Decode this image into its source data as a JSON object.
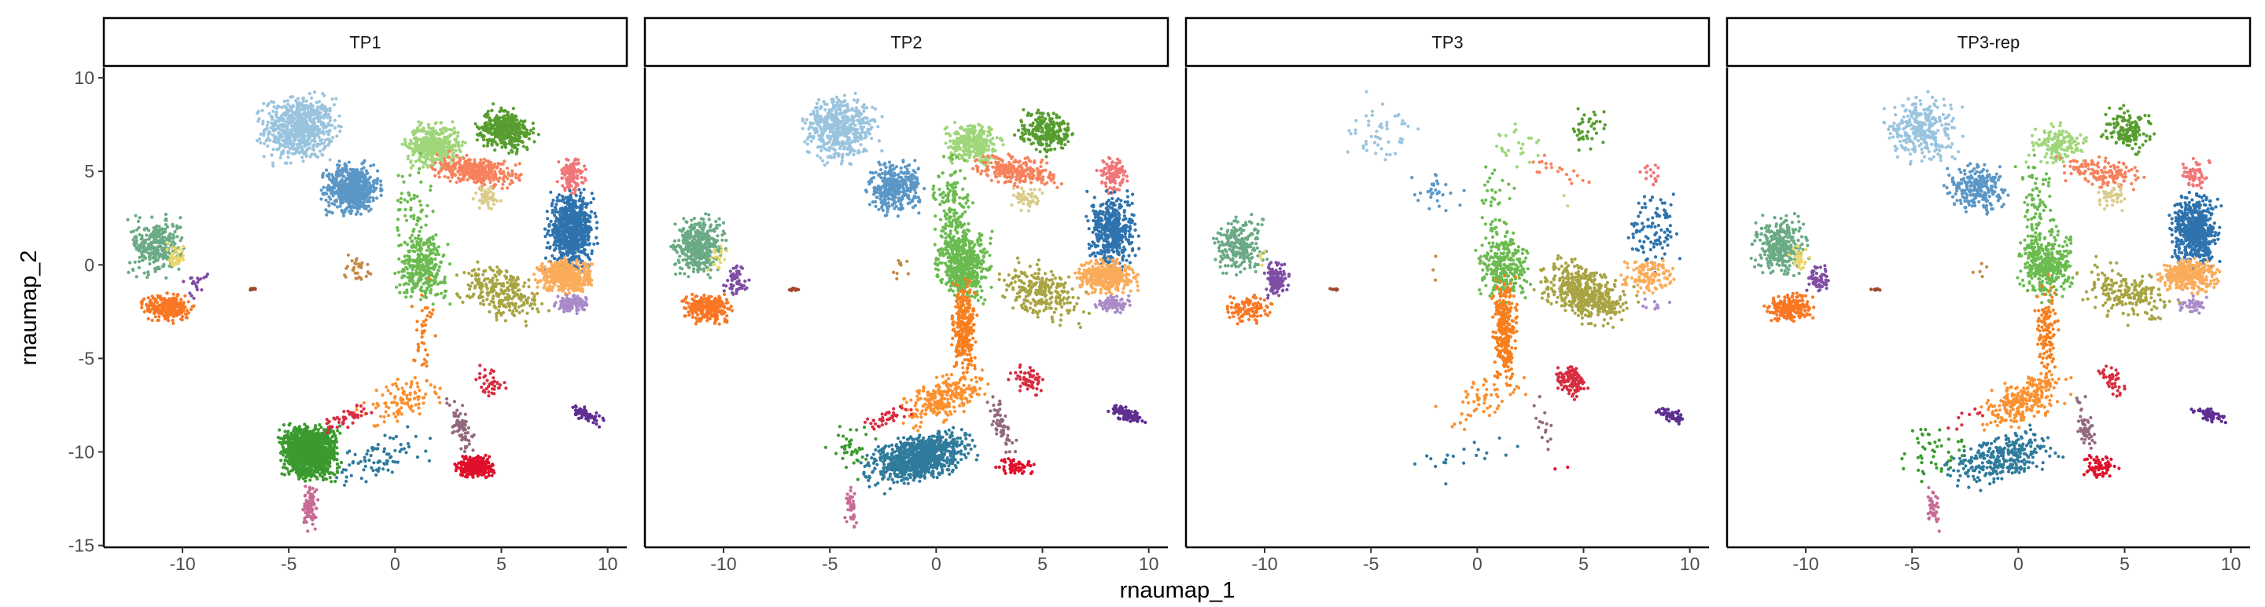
{
  "chart_data": {
    "type": "scatter",
    "title": "",
    "xlabel": "rnaumap_1",
    "ylabel": "rnaumap_2",
    "xlim": [
      -13.7,
      10.9
    ],
    "ylim": [
      -15.1,
      10.55
    ],
    "xticks": [
      -10,
      -5,
      0,
      5,
      10
    ],
    "xtick_labels": [
      "-10",
      "-5",
      "0",
      "5",
      "10"
    ],
    "yticks": [
      10,
      5,
      0,
      -5,
      -10,
      -15
    ],
    "ytick_labels": [
      "10",
      "5",
      "0",
      "-5",
      "-10",
      "-15"
    ],
    "grid": false,
    "legend": "none",
    "panels": [
      "TP1",
      "TP2",
      "TP3",
      "TP3-rep"
    ],
    "clusters_note_units": "center (cx,cy) and spread (sx,sy) in UMAP data units; rot in degrees; n = approximate cell count per panel [TP1,TP2,TP3,TP3-rep]",
    "clusters": [
      {
        "color": "#9ac4de",
        "cx": -4.5,
        "cy": 7.3,
        "sx": 0.8,
        "sy": 0.8,
        "rot": 0,
        "n": [
          700,
          500,
          50,
          300
        ]
      },
      {
        "color": "#5b97c6",
        "cx": -2.0,
        "cy": 4.1,
        "sx": 0.6,
        "sy": 0.6,
        "rot": 0,
        "n": [
          600,
          350,
          30,
          250
        ]
      },
      {
        "color": "#a0d67a",
        "cx": 1.8,
        "cy": 6.4,
        "sx": 0.6,
        "sy": 0.5,
        "rot": 0,
        "n": [
          450,
          300,
          25,
          150
        ]
      },
      {
        "color": "#579d2f",
        "cx": 5.2,
        "cy": 7.2,
        "sx": 0.6,
        "sy": 0.5,
        "rot": -30,
        "n": [
          400,
          250,
          40,
          150
        ]
      },
      {
        "color": "#f6825d",
        "cx": 3.8,
        "cy": 5.0,
        "sx": 0.9,
        "sy": 0.35,
        "rot": -10,
        "n": [
          350,
          250,
          20,
          150
        ]
      },
      {
        "color": "#f07678",
        "cx": 8.3,
        "cy": 4.8,
        "sx": 0.3,
        "sy": 0.4,
        "rot": 0,
        "n": [
          120,
          120,
          15,
          60
        ]
      },
      {
        "color": "#d9cc8a",
        "cx": 4.3,
        "cy": 3.6,
        "sx": 0.3,
        "sy": 0.3,
        "rot": 0,
        "n": [
          60,
          50,
          2,
          40
        ]
      },
      {
        "color": "#2e73ae",
        "cx": 8.3,
        "cy": 1.8,
        "sx": 0.5,
        "sy": 0.9,
        "rot": 0,
        "n": [
          700,
          450,
          100,
          600
        ]
      },
      {
        "color": "#fbac5a",
        "cx": 8.0,
        "cy": -0.6,
        "sx": 0.6,
        "sy": 0.4,
        "rot": 0,
        "n": [
          450,
          400,
          120,
          350
        ]
      },
      {
        "color": "#a98bc8",
        "cx": 8.3,
        "cy": -2.1,
        "sx": 0.35,
        "sy": 0.2,
        "rot": 0,
        "n": [
          120,
          80,
          10,
          40
        ]
      },
      {
        "color": "#a8a443",
        "cx": 5.0,
        "cy": -1.5,
        "sx": 1.0,
        "sy": 0.6,
        "rot": -30,
        "n": [
          250,
          250,
          500,
          200
        ]
      },
      {
        "color": "#6bbb50",
        "cx": 1.3,
        "cy": -0.1,
        "sx": 0.55,
        "sy": 0.8,
        "rot": 0,
        "n": [
          300,
          500,
          250,
          350
        ]
      },
      {
        "color": "#6bbb50",
        "cx": 0.8,
        "cy": 2.5,
        "sx": 0.4,
        "sy": 1.5,
        "rot": 0,
        "n": [
          80,
          200,
          60,
          100
        ]
      },
      {
        "color": "#6aaa84",
        "cx": -11.2,
        "cy": 1.0,
        "sx": 0.55,
        "sy": 0.7,
        "rot": 0,
        "n": [
          300,
          400,
          250,
          300
        ]
      },
      {
        "color": "#ebd76c",
        "cx": -10.3,
        "cy": 0.4,
        "sx": 0.2,
        "sy": 0.35,
        "rot": 0,
        "n": [
          40,
          20,
          5,
          30
        ]
      },
      {
        "color": "#f97724",
        "cx": -10.7,
        "cy": -2.3,
        "sx": 0.5,
        "sy": 0.35,
        "rot": 0,
        "n": [
          250,
          250,
          100,
          200
        ]
      },
      {
        "color": "#7f4ea4",
        "cx": -9.4,
        "cy": -0.8,
        "sx": 0.25,
        "sy": 0.4,
        "rot": 0,
        "n": [
          20,
          60,
          120,
          60
        ]
      },
      {
        "color": "#a0472c",
        "cx": -6.7,
        "cy": -1.3,
        "sx": 0.12,
        "sy": 0.03,
        "rot": 0,
        "n": [
          10,
          10,
          10,
          10
        ]
      },
      {
        "color": "#c48a47",
        "cx": -1.8,
        "cy": -0.2,
        "sx": 0.3,
        "sy": 0.3,
        "rot": 0,
        "n": [
          30,
          10,
          3,
          5
        ]
      },
      {
        "color": "#f77f1e",
        "cx": 1.3,
        "cy": -3.5,
        "sx": 0.25,
        "sy": 1.2,
        "rot": 0,
        "n": [
          40,
          300,
          300,
          120
        ]
      },
      {
        "color": "#fc902f",
        "cx": 0.3,
        "cy": -7.2,
        "sx": 1.0,
        "sy": 0.5,
        "rot": 30,
        "n": [
          100,
          250,
          60,
          250
        ]
      },
      {
        "color": "#3b9a2f",
        "cx": -4.0,
        "cy": -10.0,
        "sx": 0.6,
        "sy": 0.65,
        "rot": 0,
        "n": [
          1300,
          40,
          0,
          50
        ]
      },
      {
        "color": "#2f7b9c",
        "cx": -0.8,
        "cy": -10.3,
        "sx": 1.1,
        "sy": 0.55,
        "rot": 20,
        "n": [
          80,
          900,
          20,
          300
        ]
      },
      {
        "color": "#c86b96",
        "cx": -4.0,
        "cy": -13.0,
        "sx": 0.15,
        "sy": 0.5,
        "rot": 0,
        "n": [
          100,
          40,
          0,
          40
        ]
      },
      {
        "color": "#d82d40",
        "cx": -2.3,
        "cy": -8.2,
        "sx": 0.5,
        "sy": 0.2,
        "rot": 30,
        "n": [
          50,
          40,
          0,
          10
        ]
      },
      {
        "color": "#d82d40",
        "cx": 4.4,
        "cy": -6.2,
        "sx": 0.3,
        "sy": 0.4,
        "rot": 40,
        "n": [
          40,
          60,
          120,
          40
        ]
      },
      {
        "color": "#92697e",
        "cx": 3.1,
        "cy": -8.6,
        "sx": 0.2,
        "sy": 0.7,
        "rot": 15,
        "n": [
          80,
          60,
          15,
          50
        ]
      },
      {
        "color": "#e0102a",
        "cx": 3.8,
        "cy": -10.8,
        "sx": 0.4,
        "sy": 0.25,
        "rot": 0,
        "n": [
          300,
          60,
          2,
          60
        ]
      },
      {
        "color": "#5e2e91",
        "cx": 9.0,
        "cy": -8.0,
        "sx": 0.4,
        "sy": 0.15,
        "rot": -25,
        "n": [
          80,
          100,
          60,
          60
        ]
      }
    ]
  }
}
